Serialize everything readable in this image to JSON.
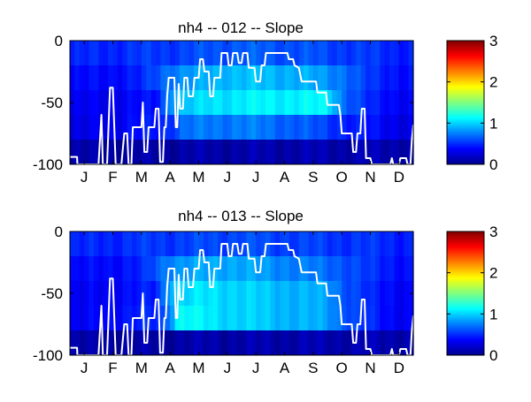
{
  "chart_data": [
    {
      "type": "heatmap",
      "title": "nh4 -- 012 -- Slope",
      "xlabel": "",
      "ylabel": "",
      "x_tick_labels": [
        "J",
        "F",
        "M",
        "A",
        "M",
        "J",
        "J",
        "A",
        "S",
        "O",
        "N",
        "D"
      ],
      "y_ticks": [
        0,
        -50,
        -100
      ],
      "y_tick_labels": [
        "0",
        "-50",
        "-100"
      ],
      "xlim": [
        0,
        12
      ],
      "ylim": [
        -100,
        0
      ],
      "colorbar": {
        "range": [
          0,
          3
        ],
        "ticks": [
          0,
          1,
          2,
          3
        ],
        "tick_labels": [
          "0",
          "1",
          "2",
          "3"
        ],
        "colormap": "jet"
      },
      "bands": [
        {
          "depth": [
            -20,
            0
          ],
          "values": [
            [
              0,
              0.45
            ],
            [
              3.5,
              0.55
            ],
            [
              6,
              0.65
            ],
            [
              8.5,
              0.6
            ],
            [
              11,
              0.5
            ],
            [
              12,
              0.45
            ]
          ]
        },
        {
          "depth": [
            -40,
            -20
          ],
          "values": [
            [
              0,
              0.35
            ],
            [
              2.5,
              0.45
            ],
            [
              3.5,
              0.75
            ],
            [
              5.5,
              0.95
            ],
            [
              8,
              0.9
            ],
            [
              9.5,
              0.75
            ],
            [
              10.5,
              0.5
            ],
            [
              12,
              0.4
            ]
          ]
        },
        {
          "depth": [
            -60,
            -40
          ],
          "values": [
            [
              0,
              0.3
            ],
            [
              3,
              0.4
            ],
            [
              3.6,
              0.9
            ],
            [
              5,
              1.05
            ],
            [
              7,
              1.1
            ],
            [
              9,
              1.1
            ],
            [
              9.6,
              0.7
            ],
            [
              10.5,
              0.45
            ],
            [
              12,
              0.35
            ]
          ]
        },
        {
          "depth": [
            -80,
            -60
          ],
          "values": [
            [
              0,
              0.25
            ],
            [
              3.2,
              0.45
            ],
            [
              4,
              0.7
            ],
            [
              6,
              0.75
            ],
            [
              8,
              0.65
            ],
            [
              9.5,
              0.5
            ],
            [
              11,
              0.35
            ],
            [
              12,
              0.3
            ]
          ]
        },
        {
          "depth": [
            -100,
            -80
          ],
          "values": [
            [
              0,
              0.1
            ],
            [
              12,
              0.15
            ]
          ]
        }
      ],
      "line": {
        "name": "",
        "color": "#ffffff",
        "points": [
          [
            0,
            -94
          ],
          [
            0.25,
            -94
          ],
          [
            0.26,
            -100
          ],
          [
            1,
            -100
          ],
          [
            1.1,
            -60
          ],
          [
            1.15,
            -100
          ],
          [
            1.3,
            -100
          ],
          [
            1.4,
            -38
          ],
          [
            1.5,
            -38
          ],
          [
            1.6,
            -100
          ],
          [
            1.8,
            -100
          ],
          [
            1.9,
            -75
          ],
          [
            2.0,
            -75
          ],
          [
            2.05,
            -100
          ],
          [
            2.15,
            -100
          ],
          [
            2.2,
            -70
          ],
          [
            2.5,
            -70
          ],
          [
            2.55,
            -50
          ],
          [
            2.6,
            -90
          ],
          [
            2.7,
            -90
          ],
          [
            2.75,
            -70
          ],
          [
            2.95,
            -70
          ],
          [
            3.0,
            -55
          ],
          [
            3.1,
            -55
          ],
          [
            3.15,
            -98
          ],
          [
            3.25,
            -98
          ],
          [
            3.3,
            -70
          ],
          [
            3.35,
            -70
          ],
          [
            3.4,
            -45
          ],
          [
            3.45,
            -30
          ],
          [
            3.65,
            -30
          ],
          [
            3.7,
            -70
          ],
          [
            3.75,
            -70
          ],
          [
            3.8,
            -35
          ],
          [
            3.85,
            -55
          ],
          [
            3.95,
            -55
          ],
          [
            4.0,
            -30
          ],
          [
            4.1,
            -30
          ],
          [
            4.15,
            -45
          ],
          [
            4.3,
            -45
          ],
          [
            4.35,
            -30
          ],
          [
            4.5,
            -30
          ],
          [
            4.55,
            -15
          ],
          [
            4.65,
            -15
          ],
          [
            4.7,
            -25
          ],
          [
            4.85,
            -25
          ],
          [
            4.9,
            -45
          ],
          [
            5.0,
            -45
          ],
          [
            5.05,
            -30
          ],
          [
            5.25,
            -30
          ],
          [
            5.3,
            -10
          ],
          [
            5.5,
            -10
          ],
          [
            5.55,
            -20
          ],
          [
            5.65,
            -20
          ],
          [
            5.7,
            -10
          ],
          [
            5.85,
            -10
          ],
          [
            5.9,
            -18
          ],
          [
            6.0,
            -18
          ],
          [
            6.05,
            -10
          ],
          [
            6.2,
            -10
          ],
          [
            6.25,
            -22
          ],
          [
            6.45,
            -22
          ],
          [
            6.5,
            -33
          ],
          [
            6.65,
            -33
          ],
          [
            6.7,
            -20
          ],
          [
            6.8,
            -20
          ],
          [
            6.85,
            -10
          ],
          [
            7.6,
            -10
          ],
          [
            7.65,
            -15
          ],
          [
            7.8,
            -15
          ],
          [
            7.85,
            -20
          ],
          [
            8.0,
            -22
          ],
          [
            8.1,
            -33
          ],
          [
            8.6,
            -33
          ],
          [
            8.65,
            -42
          ],
          [
            8.95,
            -42
          ],
          [
            9.0,
            -52
          ],
          [
            9.4,
            -52
          ],
          [
            9.45,
            -60
          ],
          [
            9.5,
            -75
          ],
          [
            9.85,
            -75
          ],
          [
            9.9,
            -90
          ],
          [
            10.0,
            -90
          ],
          [
            10.05,
            -75
          ],
          [
            10.15,
            -75
          ],
          [
            10.2,
            -55
          ],
          [
            10.3,
            -55
          ],
          [
            10.35,
            -95
          ],
          [
            10.5,
            -95
          ],
          [
            10.55,
            -100
          ],
          [
            11.2,
            -100
          ],
          [
            11.25,
            -95
          ],
          [
            11.3,
            -100
          ],
          [
            11.5,
            -100
          ],
          [
            11.55,
            -95
          ],
          [
            11.75,
            -95
          ],
          [
            11.8,
            -100
          ],
          [
            11.9,
            -100
          ],
          [
            11.95,
            -80
          ],
          [
            12,
            -68
          ]
        ]
      }
    },
    {
      "type": "heatmap",
      "title": "nh4 -- 013 -- Slope",
      "xlabel": "",
      "ylabel": "",
      "x_tick_labels": [
        "J",
        "F",
        "M",
        "A",
        "M",
        "J",
        "J",
        "A",
        "S",
        "O",
        "N",
        "D"
      ],
      "y_ticks": [
        0,
        -50,
        -100
      ],
      "y_tick_labels": [
        "0",
        "-50",
        "-100"
      ],
      "xlim": [
        0,
        12
      ],
      "ylim": [
        -100,
        0
      ],
      "colorbar": {
        "range": [
          0,
          3
        ],
        "ticks": [
          0,
          1,
          2,
          3
        ],
        "tick_labels": [
          "0",
          "1",
          "2",
          "3"
        ],
        "colormap": "jet"
      },
      "bands": [
        {
          "depth": [
            -20,
            0
          ],
          "values": [
            [
              0,
              0.45
            ],
            [
              3.5,
              0.55
            ],
            [
              6,
              0.6
            ],
            [
              8.5,
              0.55
            ],
            [
              11,
              0.5
            ],
            [
              12,
              0.45
            ]
          ]
        },
        {
          "depth": [
            -40,
            -20
          ],
          "values": [
            [
              0,
              0.35
            ],
            [
              2.5,
              0.45
            ],
            [
              3.5,
              0.8
            ],
            [
              5.5,
              0.9
            ],
            [
              8,
              0.75
            ],
            [
              9.5,
              0.65
            ],
            [
              10.5,
              0.5
            ],
            [
              12,
              0.4
            ]
          ]
        },
        {
          "depth": [
            -60,
            -40
          ],
          "values": [
            [
              0,
              0.3
            ],
            [
              3,
              0.45
            ],
            [
              3.6,
              1.0
            ],
            [
              5,
              1.05
            ],
            [
              7,
              0.95
            ],
            [
              9,
              0.85
            ],
            [
              9.6,
              0.65
            ],
            [
              10.5,
              0.45
            ],
            [
              12,
              0.35
            ]
          ]
        },
        {
          "depth": [
            -80,
            -60
          ],
          "values": [
            [
              0,
              0.3
            ],
            [
              3.2,
              0.5
            ],
            [
              3.8,
              1.15
            ],
            [
              5,
              1.05
            ],
            [
              7,
              0.95
            ],
            [
              9,
              0.85
            ],
            [
              10,
              0.55
            ],
            [
              11,
              0.4
            ],
            [
              12,
              0.35
            ]
          ]
        },
        {
          "depth": [
            -100,
            -80
          ],
          "values": [
            [
              0,
              0.1
            ],
            [
              12,
              0.15
            ]
          ]
        }
      ],
      "line": {
        "name": "",
        "color": "#ffffff",
        "points": [
          [
            0,
            -94
          ],
          [
            0.25,
            -94
          ],
          [
            0.26,
            -100
          ],
          [
            1,
            -100
          ],
          [
            1.1,
            -60
          ],
          [
            1.15,
            -100
          ],
          [
            1.3,
            -100
          ],
          [
            1.4,
            -38
          ],
          [
            1.5,
            -38
          ],
          [
            1.6,
            -100
          ],
          [
            1.8,
            -100
          ],
          [
            1.9,
            -75
          ],
          [
            2.0,
            -75
          ],
          [
            2.05,
            -100
          ],
          [
            2.15,
            -100
          ],
          [
            2.2,
            -70
          ],
          [
            2.5,
            -70
          ],
          [
            2.55,
            -50
          ],
          [
            2.6,
            -90
          ],
          [
            2.7,
            -90
          ],
          [
            2.75,
            -70
          ],
          [
            2.95,
            -70
          ],
          [
            3.0,
            -55
          ],
          [
            3.1,
            -55
          ],
          [
            3.15,
            -98
          ],
          [
            3.25,
            -98
          ],
          [
            3.3,
            -70
          ],
          [
            3.35,
            -70
          ],
          [
            3.4,
            -45
          ],
          [
            3.45,
            -30
          ],
          [
            3.65,
            -30
          ],
          [
            3.7,
            -70
          ],
          [
            3.75,
            -70
          ],
          [
            3.8,
            -35
          ],
          [
            3.85,
            -55
          ],
          [
            3.95,
            -55
          ],
          [
            4.0,
            -30
          ],
          [
            4.1,
            -30
          ],
          [
            4.15,
            -45
          ],
          [
            4.3,
            -45
          ],
          [
            4.35,
            -30
          ],
          [
            4.5,
            -30
          ],
          [
            4.55,
            -15
          ],
          [
            4.65,
            -15
          ],
          [
            4.7,
            -25
          ],
          [
            4.85,
            -25
          ],
          [
            4.9,
            -45
          ],
          [
            5.0,
            -45
          ],
          [
            5.05,
            -30
          ],
          [
            5.25,
            -30
          ],
          [
            5.3,
            -10
          ],
          [
            5.5,
            -10
          ],
          [
            5.55,
            -20
          ],
          [
            5.65,
            -20
          ],
          [
            5.7,
            -10
          ],
          [
            5.85,
            -10
          ],
          [
            5.9,
            -18
          ],
          [
            6.0,
            -18
          ],
          [
            6.05,
            -10
          ],
          [
            6.2,
            -10
          ],
          [
            6.25,
            -22
          ],
          [
            6.45,
            -22
          ],
          [
            6.5,
            -33
          ],
          [
            6.65,
            -33
          ],
          [
            6.7,
            -20
          ],
          [
            6.8,
            -20
          ],
          [
            6.85,
            -10
          ],
          [
            7.6,
            -10
          ],
          [
            7.65,
            -15
          ],
          [
            7.8,
            -15
          ],
          [
            7.85,
            -20
          ],
          [
            8.0,
            -22
          ],
          [
            8.1,
            -33
          ],
          [
            8.6,
            -33
          ],
          [
            8.65,
            -42
          ],
          [
            8.95,
            -42
          ],
          [
            9.0,
            -52
          ],
          [
            9.4,
            -52
          ],
          [
            9.45,
            -60
          ],
          [
            9.5,
            -75
          ],
          [
            9.85,
            -75
          ],
          [
            9.9,
            -90
          ],
          [
            10.0,
            -90
          ],
          [
            10.05,
            -75
          ],
          [
            10.15,
            -75
          ],
          [
            10.2,
            -55
          ],
          [
            10.3,
            -55
          ],
          [
            10.35,
            -95
          ],
          [
            10.5,
            -95
          ],
          [
            10.55,
            -100
          ],
          [
            11.2,
            -100
          ],
          [
            11.25,
            -95
          ],
          [
            11.3,
            -100
          ],
          [
            11.5,
            -100
          ],
          [
            11.55,
            -95
          ],
          [
            11.75,
            -95
          ],
          [
            11.8,
            -100
          ],
          [
            11.9,
            -100
          ],
          [
            11.95,
            -80
          ],
          [
            12,
            -68
          ]
        ]
      }
    }
  ]
}
